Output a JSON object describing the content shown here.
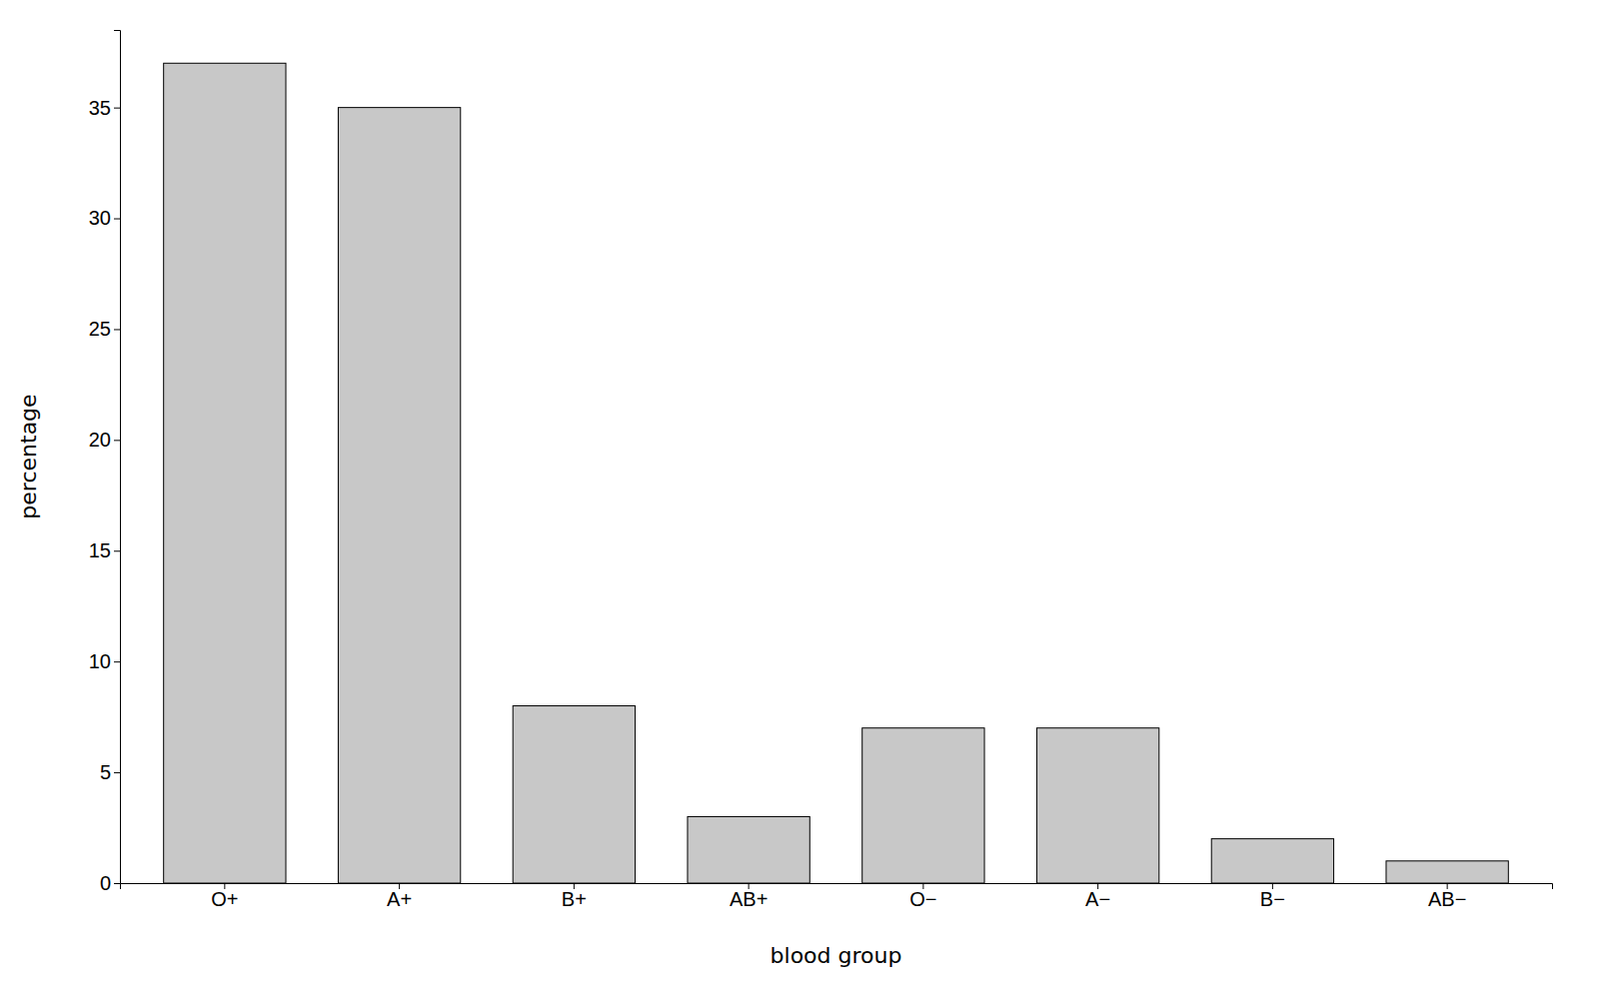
{
  "chart_data": {
    "type": "bar",
    "categories": [
      "O+",
      "A+",
      "B+",
      "AB+",
      "O−",
      "A−",
      "B−",
      "AB−"
    ],
    "values": [
      37,
      35,
      8,
      3,
      7,
      7,
      2,
      1
    ],
    "color": "#c8c8c8",
    "xlabel": "blood group",
    "ylabel": "percentage",
    "ylim": [
      0,
      38.5
    ],
    "yticks": [
      0,
      5,
      10,
      15,
      20,
      25,
      30,
      35
    ],
    "grid": false
  }
}
